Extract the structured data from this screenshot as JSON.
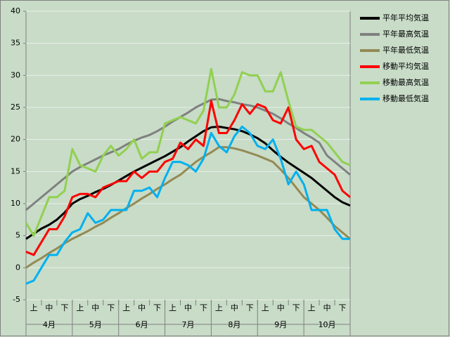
{
  "chart_data": {
    "type": "line",
    "x": [
      0,
      0.5,
      1,
      1.5,
      2,
      2.5,
      3,
      3.5,
      4,
      4.5,
      5,
      5.5,
      6,
      6.5,
      7,
      7.5,
      8,
      8.5,
      9,
      9.5,
      10,
      10.5,
      11,
      11.5,
      12,
      12.5,
      13,
      13.5,
      14,
      14.5,
      15,
      15.5,
      16,
      16.5,
      17,
      17.5,
      18,
      18.5,
      19,
      19.5,
      20,
      20.5,
      21
    ],
    "xlim": [
      0,
      21
    ],
    "dekad_labels": [
      "上",
      "中",
      "下",
      "上",
      "中",
      "下",
      "上",
      "中",
      "下",
      "上",
      "中",
      "下",
      "上",
      "中",
      "下",
      "上",
      "中",
      "下",
      "上",
      "中",
      "下"
    ],
    "months": [
      "4月",
      "5月",
      "6月",
      "7月",
      "8月",
      "9月",
      "10月"
    ],
    "ylim": [
      -5,
      40
    ],
    "yticks": [
      -5,
      0,
      5,
      10,
      15,
      20,
      25,
      30,
      35,
      40
    ],
    "grid": true,
    "series": [
      {
        "name": "平年平均気温",
        "color": "#000000",
        "values": [
          4.5,
          5.3,
          6.1,
          6.7,
          7.5,
          8.6,
          10.0,
          10.7,
          11.2,
          11.8,
          12.3,
          12.9,
          13.6,
          14.3,
          15.0,
          15.6,
          16.2,
          16.8,
          17.4,
          18.1,
          18.8,
          19.7,
          20.5,
          21.3,
          21.9,
          22.0,
          21.8,
          21.6,
          21.3,
          20.8,
          20.2,
          19.4,
          18.3,
          17.3,
          16.4,
          15.6,
          14.8,
          14.0,
          13.0,
          12.0,
          11.0,
          10.2,
          9.7
        ]
      },
      {
        "name": "平年最高気温",
        "color": "#808080",
        "values": [
          9.0,
          10.0,
          11.0,
          12.0,
          13.0,
          14.0,
          15.0,
          15.7,
          16.3,
          16.9,
          17.5,
          18.0,
          18.5,
          19.2,
          19.8,
          20.3,
          20.7,
          21.3,
          22.0,
          22.8,
          23.5,
          24.2,
          25.0,
          25.6,
          26.2,
          26.3,
          26.0,
          25.8,
          25.5,
          25.3,
          25.0,
          24.5,
          24.0,
          23.3,
          22.5,
          21.8,
          21.0,
          20.3,
          19.5,
          17.5,
          16.5,
          15.5,
          14.5
        ]
      },
      {
        "name": "平年最低気温",
        "color": "#948a54",
        "values": [
          0.0,
          0.8,
          1.5,
          2.3,
          3.0,
          3.8,
          4.5,
          5.1,
          5.7,
          6.4,
          7.0,
          7.8,
          8.5,
          9.3,
          10.0,
          10.8,
          11.5,
          12.3,
          13.0,
          13.8,
          14.5,
          15.5,
          16.5,
          17.3,
          18.0,
          18.8,
          18.8,
          18.6,
          18.3,
          17.9,
          17.5,
          17.0,
          16.5,
          15.3,
          14.0,
          12.5,
          11.0,
          10.0,
          9.0,
          7.8,
          6.5,
          5.5,
          4.5
        ]
      },
      {
        "name": "移動平均気温",
        "color": "#ff0000",
        "values": [
          2.5,
          2.0,
          4.0,
          6.0,
          6.0,
          8.0,
          11.0,
          11.5,
          11.5,
          11.0,
          12.5,
          13.0,
          13.5,
          13.5,
          15.0,
          14.0,
          15.0,
          15.0,
          16.5,
          17.0,
          19.5,
          18.5,
          20.0,
          19.0,
          26.0,
          21.0,
          21.0,
          23.0,
          25.5,
          24.0,
          25.5,
          25.0,
          23.0,
          22.5,
          25.0,
          20.0,
          18.5,
          19.0,
          16.5,
          15.5,
          14.5,
          12.0,
          11.0
        ]
      },
      {
        "name": "移動最高気温",
        "color": "#92d050",
        "values": [
          7.0,
          5.0,
          8.0,
          11.0,
          11.0,
          12.0,
          18.5,
          16.0,
          15.5,
          15.0,
          17.5,
          19.0,
          17.5,
          18.5,
          20.0,
          17.0,
          18.0,
          18.0,
          22.5,
          23.0,
          23.5,
          23.0,
          22.5,
          24.5,
          31.0,
          25.0,
          25.0,
          27.0,
          30.5,
          30.0,
          30.0,
          27.5,
          27.5,
          30.5,
          26.0,
          22.0,
          21.5,
          21.5,
          20.5,
          19.5,
          18.0,
          16.5,
          16.0
        ]
      },
      {
        "name": "移動最低気温",
        "color": "#00b0f0",
        "values": [
          -2.5,
          -2.0,
          0.0,
          2.0,
          2.0,
          4.0,
          5.5,
          6.0,
          8.5,
          7.0,
          7.5,
          9.0,
          9.0,
          9.0,
          12.0,
          12.0,
          12.5,
          11.0,
          14.0,
          16.5,
          16.5,
          16.0,
          15.0,
          17.0,
          21.0,
          19.0,
          18.0,
          20.5,
          22.0,
          21.0,
          19.0,
          18.5,
          20.0,
          17.0,
          13.0,
          15.0,
          13.0,
          9.0,
          9.0,
          9.0,
          6.0,
          4.5,
          4.5
        ]
      }
    ]
  }
}
